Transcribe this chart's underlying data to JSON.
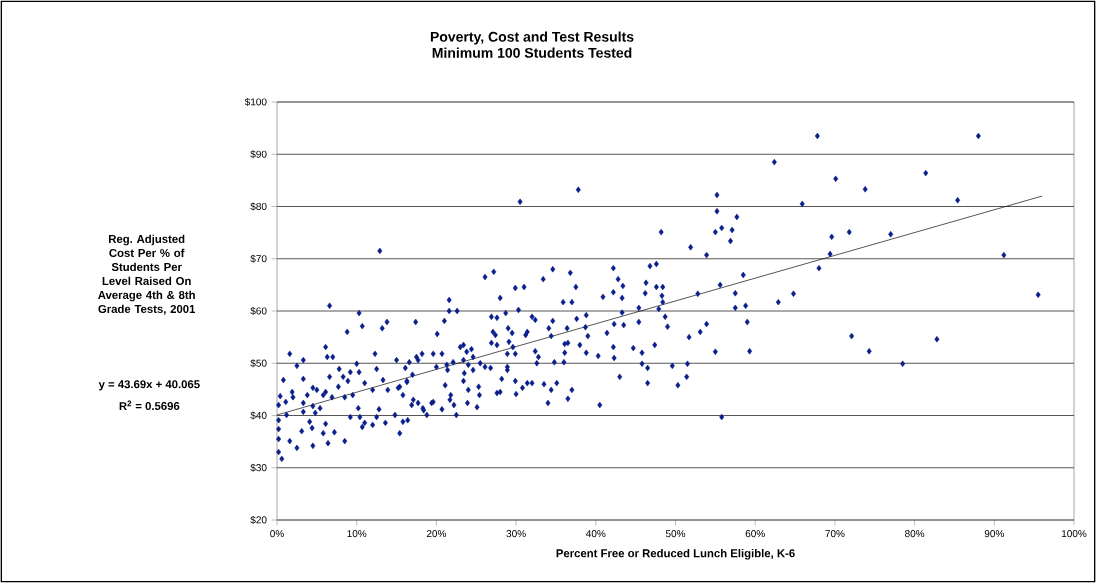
{
  "chart_data": {
    "type": "scatter",
    "title": "Poverty, Cost and Test Results",
    "subtitle": "Minimum 100 Students Tested",
    "xlabel": "Percent Free or Reduced Lunch Eligible, K-6",
    "ylabel": "Reg. Adjusted Cost Per % of Students Per Level Raised On Average 4th & 8th Grade Tests, 2001",
    "annotations": [
      "y = 43.69x + 40.065",
      "R$^{2}$ = 0.5696"
    ],
    "xlim": [
      0,
      1
    ],
    "ylim": [
      20,
      100
    ],
    "xticks": [
      {
        "value": 0,
        "label": "0%"
      },
      {
        "value": 0.1,
        "label": "10%"
      },
      {
        "value": 0.2,
        "label": "20%"
      },
      {
        "value": 0.3,
        "label": "30%"
      },
      {
        "value": 0.4,
        "label": "40%"
      },
      {
        "value": 0.5,
        "label": "50%"
      },
      {
        "value": 0.6,
        "label": "60%"
      },
      {
        "value": 0.7,
        "label": "70%"
      },
      {
        "value": 0.8,
        "label": "80%"
      },
      {
        "value": 0.9,
        "label": "90%"
      },
      {
        "value": 1,
        "label": "100%"
      }
    ],
    "yticks": [
      {
        "value": 20,
        "label": "$20"
      },
      {
        "value": 30,
        "label": "$30"
      },
      {
        "value": 40,
        "label": "$40"
      },
      {
        "value": 50,
        "label": "$50"
      },
      {
        "value": 60,
        "label": "$60"
      },
      {
        "value": 70,
        "label": "$70"
      },
      {
        "value": 80,
        "label": "$80"
      },
      {
        "value": 90,
        "label": "$90"
      },
      {
        "value": 100,
        "label": "$100"
      }
    ],
    "grid": "y",
    "marker": "diamond",
    "series": [
      {
        "color": "#0a1e8c",
        "x": [
          0.678,
          0.88,
          0.701,
          0.738,
          0.814,
          0.854,
          0.696,
          0.718,
          0.77,
          0.694,
          0.912,
          0.955,
          0.721,
          0.743,
          0.785,
          0.828,
          0.624,
          0.659,
          0.552,
          0.552,
          0.577,
          0.558,
          0.55,
          0.571,
          0.569,
          0.482,
          0.519,
          0.539,
          0.68,
          0.422,
          0.428,
          0.434,
          0.409,
          0.422,
          0.433,
          0.468,
          0.476,
          0.463,
          0.462,
          0.476,
          0.484,
          0.483,
          0.484,
          0.585,
          0.556,
          0.528,
          0.575,
          0.575,
          0.588,
          0.629,
          0.648,
          0.454,
          0.433,
          0.479,
          0.487,
          0.49,
          0.454,
          0.435,
          0.423,
          0.414,
          0.59,
          0.539,
          0.531,
          0.517,
          0.447,
          0.422,
          0.423,
          0.458,
          0.474,
          0.55,
          0.593,
          0.458,
          0.465,
          0.496,
          0.515,
          0.43,
          0.465,
          0.503,
          0.514,
          0.405,
          0.558,
          0.378,
          0.305,
          0.129,
          0.261,
          0.272,
          0.299,
          0.31,
          0.28,
          0.334,
          0.346,
          0.368,
          0.375,
          0.359,
          0.37,
          0.216,
          0.216,
          0.226,
          0.174,
          0.21,
          0.201,
          0.269,
          0.276,
          0.287,
          0.303,
          0.32,
          0.324,
          0.346,
          0.341,
          0.364,
          0.376,
          0.388,
          0.387,
          0.39,
          0.271,
          0.274,
          0.29,
          0.295,
          0.314,
          0.312,
          0.344,
          0.269,
          0.276,
          0.291,
          0.296,
          0.324,
          0.361,
          0.365,
          0.38,
          0.388,
          0.289,
          0.299,
          0.328,
          0.361,
          0.326,
          0.348,
          0.36,
          0.23,
          0.234,
          0.244,
          0.246,
          0.238,
          0.196,
          0.207,
          0.182,
          0.177,
          0.221,
          0.234,
          0.24,
          0.255,
          0.261,
          0.268,
          0.213,
          0.214,
          0.166,
          0.2,
          0.161,
          0.17,
          0.235,
          0.246,
          0.282,
          0.289,
          0.289,
          0.299,
          0.211,
          0.234,
          0.253,
          0.24,
          0.254,
          0.218,
          0.217,
          0.239,
          0.251,
          0.276,
          0.28,
          0.3,
          0.308,
          0.314,
          0.32,
          0.335,
          0.344,
          0.351,
          0.34,
          0.365,
          0.37,
          0.196,
          0.207,
          0.222,
          0.225,
          0.403,
          0.175,
          0.163,
          0.158,
          0.154,
          0.171,
          0.177,
          0.183,
          0.188,
          0.194,
          0.158,
          0.164,
          0.154,
          0.066,
          0.103,
          0.107,
          0.088,
          0.132,
          0.138,
          0.016,
          0.033,
          0.025,
          0.061,
          0.063,
          0.07,
          0.123,
          0.1,
          0.078,
          0.092,
          0.103,
          0.125,
          0.15,
          0.008,
          0.033,
          0.066,
          0.045,
          0.019,
          0.004,
          0.02,
          0.011,
          0.002,
          0.002,
          0.002,
          0.002,
          0.002,
          0.006,
          0.016,
          0.025,
          0.045,
          0.064,
          0.085,
          0.031,
          0.044,
          0.058,
          0.072,
          0.012,
          0.033,
          0.048,
          0.041,
          0.061,
          0.033,
          0.045,
          0.054,
          0.038,
          0.05,
          0.058,
          0.061,
          0.069,
          0.077,
          0.085,
          0.095,
          0.092,
          0.104,
          0.11,
          0.107,
          0.12,
          0.136,
          0.125,
          0.102,
          0.128,
          0.148,
          0.169,
          0.184,
          0.083,
          0.089,
          0.11,
          0.12,
          0.133,
          0.139,
          0.152,
          0.163
        ],
        "values": [
          93.5,
          93.5,
          85.3,
          83.3,
          86.4,
          81.2,
          74.2,
          75.1,
          74.7,
          70.9,
          70.7,
          63.1,
          55.2,
          52.3,
          49.9,
          54.6,
          88.5,
          80.5,
          82.2,
          79.1,
          78.0,
          75.9,
          75.1,
          75.5,
          73.4,
          75.1,
          72.2,
          70.7,
          68.2,
          68.2,
          66.1,
          64.8,
          62.7,
          63.6,
          62.5,
          68.6,
          69.0,
          65.4,
          63.4,
          64.6,
          64.6,
          62.9,
          61.7,
          66.9,
          65.0,
          63.3,
          63.4,
          60.6,
          61.0,
          61.7,
          63.3,
          60.6,
          59.7,
          60.4,
          58.9,
          57.0,
          57.9,
          57.3,
          57.5,
          55.8,
          57.9,
          57.5,
          56.0,
          55.0,
          52.9,
          53.1,
          51.0,
          52.0,
          53.5,
          52.2,
          52.3,
          49.9,
          49.1,
          49.5,
          49.9,
          47.4,
          46.2,
          45.8,
          47.4,
          42.0,
          39.7,
          83.2,
          80.9,
          71.5,
          66.5,
          67.5,
          64.4,
          64.6,
          62.5,
          66.1,
          68.0,
          67.3,
          64.6,
          61.7,
          61.7,
          62.1,
          60.0,
          60.0,
          57.9,
          58.1,
          55.6,
          58.9,
          58.7,
          59.6,
          60.2,
          58.9,
          58.3,
          58.1,
          56.7,
          56.7,
          58.5,
          59.2,
          56.9,
          55.2,
          56.0,
          55.4,
          56.7,
          55.8,
          56.0,
          55.4,
          55.2,
          53.9,
          53.5,
          54.1,
          53.1,
          52.3,
          53.7,
          53.9,
          53.5,
          52.0,
          51.8,
          51.8,
          51.2,
          52.0,
          50.0,
          50.2,
          50.2,
          53.1,
          53.5,
          52.7,
          51.2,
          52.2,
          51.8,
          51.8,
          51.8,
          50.6,
          50.2,
          50.6,
          49.7,
          50.0,
          49.3,
          49.1,
          49.7,
          48.7,
          50.2,
          49.3,
          49.1,
          47.8,
          48.1,
          48.7,
          47.0,
          49.3,
          48.7,
          46.6,
          45.8,
          46.6,
          45.5,
          44.9,
          43.9,
          43.9,
          43.0,
          42.4,
          41.6,
          44.3,
          44.5,
          44.1,
          45.3,
          46.2,
          46.2,
          46.0,
          44.9,
          46.2,
          42.4,
          43.2,
          44.9,
          42.6,
          41.2,
          42.0,
          40.1,
          51.4,
          51.2,
          46.4,
          43.9,
          45.5,
          43.0,
          42.4,
          41.4,
          40.1,
          42.4,
          38.8,
          39.1,
          36.6,
          61.0,
          59.6,
          57.1,
          56.0,
          56.7,
          57.9,
          51.8,
          50.6,
          49.5,
          53.1,
          51.2,
          51.2,
          51.8,
          49.9,
          48.9,
          48.3,
          48.3,
          48.9,
          50.6,
          46.8,
          47.0,
          47.4,
          45.3,
          44.5,
          43.7,
          43.5,
          42.6,
          42.0,
          39.1,
          37.4,
          35.5,
          33.0,
          31.7,
          35.1,
          33.8,
          34.2,
          34.7,
          35.1,
          37.0,
          37.6,
          36.6,
          36.8,
          40.1,
          40.7,
          40.5,
          38.8,
          38.4,
          42.4,
          41.8,
          41.4,
          43.9,
          44.9,
          43.9,
          44.5,
          43.5,
          45.5,
          43.5,
          43.9,
          39.7,
          39.7,
          38.6,
          37.8,
          38.2,
          38.6,
          39.7,
          41.4,
          41.2,
          40.1,
          42.0,
          41.0,
          47.4,
          46.6,
          46.2,
          44.9,
          46.8,
          44.9,
          45.3,
          46.6
        ]
      },
      {
        "type": "line",
        "color": "#000000",
        "marker": "none",
        "x": [
          0,
          0.96
        ],
        "values": [
          40.1,
          82.0
        ]
      }
    ]
  }
}
